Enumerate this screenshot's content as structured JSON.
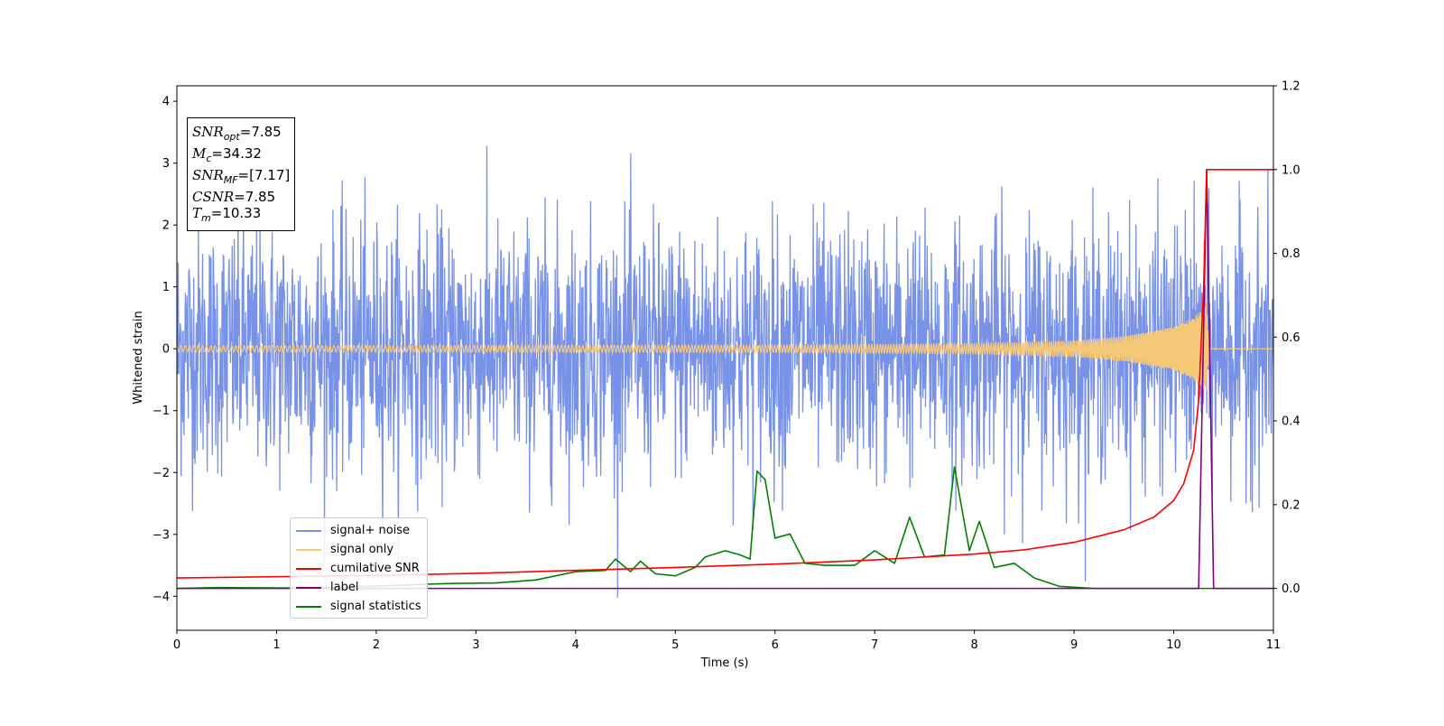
{
  "chart_data": {
    "type": "line",
    "xlabel": "Time (s)",
    "ylabel": "Whitened strain",
    "xlim": [
      0,
      11
    ],
    "ylim": [
      -4.55,
      4.25
    ],
    "y2lim": [
      -0.1,
      1.2
    ],
    "xticks": [
      "0",
      "1",
      "2",
      "3",
      "4",
      "5",
      "6",
      "7",
      "8",
      "9",
      "10",
      "11"
    ],
    "yticks": [
      "−4",
      "−3",
      "−2",
      "−1",
      "0",
      "1",
      "2",
      "3",
      "4"
    ],
    "y2ticks": [
      "0.0",
      "0.2",
      "0.4",
      "0.6",
      "0.8",
      "1.0",
      "1.2"
    ],
    "grid": false,
    "legend_placement": "lower-left",
    "annotation": {
      "snr_opt": "7.85",
      "mc": "34.32",
      "snr_mf": "[7.17]",
      "csnr": "7.85",
      "tm": "10.33"
    },
    "series": [
      {
        "name": "signal+ noise",
        "axis": "left",
        "color": "#7892e8",
        "noise_sigma": 1.0,
        "points": [
          [
            0,
            0
          ],
          [
            11,
            0
          ]
        ]
      },
      {
        "name": "signal only",
        "axis": "left",
        "color": "#f5c878",
        "merger_time": 10.33,
        "points": [
          [
            0,
            0.05
          ],
          [
            6,
            0.06
          ],
          [
            8,
            0.08
          ],
          [
            9,
            0.13
          ],
          [
            9.5,
            0.2
          ],
          [
            10,
            0.35
          ],
          [
            10.2,
            0.5
          ],
          [
            10.3,
            0.7
          ],
          [
            10.33,
            0.75
          ],
          [
            10.36,
            0.0
          ],
          [
            11,
            0.0
          ]
        ]
      },
      {
        "name": "cumilative SNR",
        "axis": "right",
        "color": "#ff0000",
        "points": [
          [
            0,
            0.025
          ],
          [
            1,
            0.028
          ],
          [
            2,
            0.031
          ],
          [
            3,
            0.036
          ],
          [
            4,
            0.043
          ],
          [
            5,
            0.05
          ],
          [
            6,
            0.058
          ],
          [
            7,
            0.068
          ],
          [
            8,
            0.082
          ],
          [
            8.5,
            0.092
          ],
          [
            9,
            0.11
          ],
          [
            9.5,
            0.14
          ],
          [
            9.8,
            0.17
          ],
          [
            10,
            0.21
          ],
          [
            10.1,
            0.25
          ],
          [
            10.2,
            0.33
          ],
          [
            10.25,
            0.45
          ],
          [
            10.3,
            0.72
          ],
          [
            10.33,
            1.0
          ],
          [
            11,
            1.0
          ]
        ]
      },
      {
        "name": "label",
        "axis": "right",
        "color": "#800080",
        "points": [
          [
            0,
            0.0
          ],
          [
            10.25,
            0.0
          ],
          [
            10.33,
            1.0
          ],
          [
            10.4,
            0.0
          ],
          [
            11,
            0.0
          ]
        ]
      },
      {
        "name": "signal statistics",
        "axis": "right",
        "color": "#008000",
        "points": [
          [
            0,
            0.0
          ],
          [
            0.4,
            0.002
          ],
          [
            1.2,
            0.001
          ],
          [
            1.8,
            0.004
          ],
          [
            2.3,
            0.008
          ],
          [
            2.5,
            0.01
          ],
          [
            2.8,
            0.012
          ],
          [
            3.2,
            0.013
          ],
          [
            3.6,
            0.02
          ],
          [
            4.0,
            0.04
          ],
          [
            4.3,
            0.043
          ],
          [
            4.4,
            0.07
          ],
          [
            4.55,
            0.04
          ],
          [
            4.65,
            0.065
          ],
          [
            4.8,
            0.035
          ],
          [
            5.0,
            0.03
          ],
          [
            5.2,
            0.05
          ],
          [
            5.3,
            0.075
          ],
          [
            5.5,
            0.09
          ],
          [
            5.65,
            0.08
          ],
          [
            5.75,
            0.07
          ],
          [
            5.82,
            0.28
          ],
          [
            5.9,
            0.26
          ],
          [
            6.0,
            0.12
          ],
          [
            6.15,
            0.13
          ],
          [
            6.3,
            0.06
          ],
          [
            6.5,
            0.055
          ],
          [
            6.8,
            0.055
          ],
          [
            7.0,
            0.09
          ],
          [
            7.2,
            0.06
          ],
          [
            7.35,
            0.17
          ],
          [
            7.5,
            0.075
          ],
          [
            7.7,
            0.08
          ],
          [
            7.8,
            0.29
          ],
          [
            7.95,
            0.09
          ],
          [
            8.05,
            0.16
          ],
          [
            8.2,
            0.05
          ],
          [
            8.4,
            0.06
          ],
          [
            8.6,
            0.025
          ],
          [
            8.85,
            0.005
          ],
          [
            9.2,
            0.0
          ],
          [
            11,
            0.0
          ]
        ]
      }
    ]
  }
}
